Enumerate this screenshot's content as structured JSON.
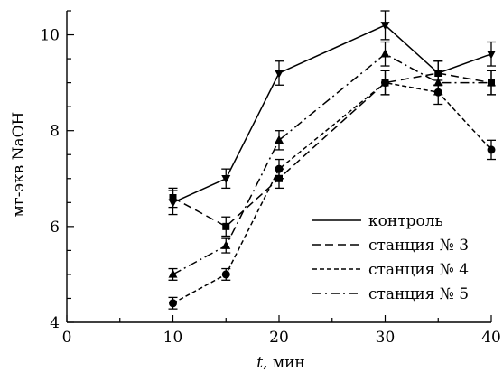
{
  "chart_data": {
    "type": "line",
    "xlabel_var": "t",
    "xlabel_unit": ", мин",
    "ylabel": "мг-экв NaOH",
    "xlim": [
      0,
      40
    ],
    "ylim": [
      4,
      10.5
    ],
    "xticks": [
      0,
      10,
      20,
      30,
      40
    ],
    "yticks": [
      4,
      6,
      8,
      10
    ],
    "xminor_step": 5,
    "grid": false,
    "legend_position": "bottom-right",
    "series": [
      {
        "name": "контроль",
        "dash": "solid",
        "marker": "triangle-down",
        "x": [
          10,
          15,
          20,
          30,
          35,
          40
        ],
        "y": [
          6.5,
          7.0,
          9.2,
          10.2,
          9.2,
          9.6
        ],
        "err": [
          0.25,
          0.2,
          0.25,
          0.3,
          0.25,
          0.25
        ]
      },
      {
        "name": "станция № 3",
        "dash": "dashed",
        "marker": "square",
        "x": [
          10,
          15,
          20,
          30,
          35,
          40
        ],
        "y": [
          6.6,
          6.0,
          7.0,
          9.0,
          9.2,
          9.0
        ],
        "err": [
          0.2,
          0.2,
          0.2,
          0.25,
          0.25,
          0.25
        ]
      },
      {
        "name": "станция № 4",
        "dash": "short-dashed",
        "marker": "circle",
        "x": [
          10,
          15,
          20,
          30,
          35,
          40
        ],
        "y": [
          4.4,
          5.0,
          7.2,
          9.0,
          8.8,
          7.6
        ],
        "err": [
          0.12,
          0.12,
          0.2,
          0.25,
          0.25,
          0.2
        ]
      },
      {
        "name": "станция № 5",
        "dash": "dash-dot",
        "marker": "triangle-up",
        "x": [
          10,
          15,
          20,
          30,
          35,
          40
        ],
        "y": [
          5.0,
          5.6,
          7.8,
          9.6,
          9.0,
          9.0
        ],
        "err": [
          0.12,
          0.15,
          0.2,
          0.25,
          0.25,
          0.25
        ]
      }
    ]
  }
}
